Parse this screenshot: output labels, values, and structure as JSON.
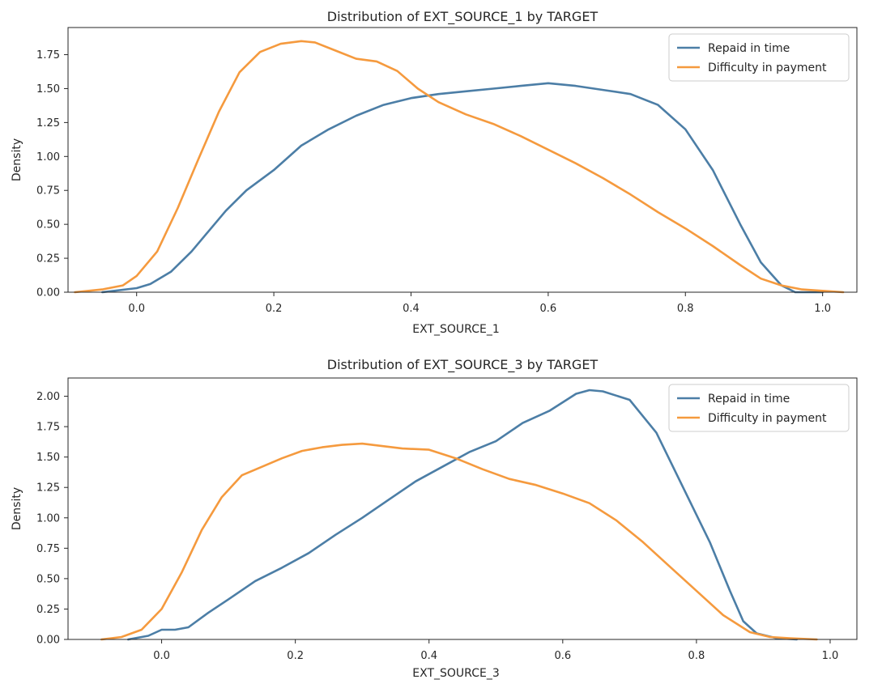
{
  "chart_data": [
    {
      "type": "line",
      "title": "Distribution of EXT_SOURCE_1 by TARGET",
      "xlabel": "EXT_SOURCE_1",
      "ylabel": "Density",
      "xlim": [
        -0.1,
        1.05
      ],
      "ylim": [
        0.0,
        1.95
      ],
      "xticks": [
        "0.0",
        "0.2",
        "0.4",
        "0.6",
        "0.8",
        "1.0"
      ],
      "yticks": [
        "0.00",
        "0.25",
        "0.50",
        "0.75",
        "1.00",
        "1.25",
        "1.50",
        "1.75"
      ],
      "grid": false,
      "legend_position": "top-right",
      "series": [
        {
          "name": "Repaid in time",
          "color": "#4c7ea6",
          "x": [
            -0.05,
            0.0,
            0.02,
            0.05,
            0.08,
            0.1,
            0.13,
            0.16,
            0.2,
            0.24,
            0.28,
            0.32,
            0.36,
            0.4,
            0.44,
            0.48,
            0.52,
            0.56,
            0.6,
            0.64,
            0.68,
            0.72,
            0.76,
            0.8,
            0.84,
            0.88,
            0.91,
            0.94,
            0.96,
            1.0
          ],
          "y": [
            0.0,
            0.03,
            0.06,
            0.15,
            0.3,
            0.42,
            0.6,
            0.75,
            0.9,
            1.08,
            1.2,
            1.3,
            1.38,
            1.43,
            1.46,
            1.48,
            1.5,
            1.52,
            1.54,
            1.52,
            1.49,
            1.46,
            1.38,
            1.2,
            0.9,
            0.5,
            0.22,
            0.05,
            0.0,
            0.0
          ]
        },
        {
          "name": "Difficulty in payment",
          "color": "#f59a3e",
          "x": [
            -0.09,
            -0.05,
            -0.02,
            0.0,
            0.03,
            0.06,
            0.09,
            0.12,
            0.15,
            0.18,
            0.21,
            0.24,
            0.26,
            0.29,
            0.32,
            0.35,
            0.38,
            0.41,
            0.44,
            0.48,
            0.52,
            0.56,
            0.6,
            0.64,
            0.68,
            0.72,
            0.76,
            0.8,
            0.84,
            0.88,
            0.91,
            0.94,
            0.97,
            1.0,
            1.03
          ],
          "y": [
            0.0,
            0.02,
            0.05,
            0.12,
            0.3,
            0.62,
            0.98,
            1.33,
            1.62,
            1.77,
            1.83,
            1.85,
            1.84,
            1.78,
            1.72,
            1.7,
            1.63,
            1.5,
            1.4,
            1.31,
            1.24,
            1.15,
            1.05,
            0.95,
            0.84,
            0.72,
            0.59,
            0.47,
            0.34,
            0.2,
            0.1,
            0.05,
            0.02,
            0.01,
            0.0
          ]
        }
      ]
    },
    {
      "type": "line",
      "title": "Distribution of EXT_SOURCE_3 by TARGET",
      "xlabel": "EXT_SOURCE_3",
      "ylabel": "Density",
      "xlim": [
        -0.14,
        1.04
      ],
      "ylim": [
        0.0,
        2.15
      ],
      "xticks": [
        "0.0",
        "0.2",
        "0.4",
        "0.6",
        "0.8",
        "1.0"
      ],
      "yticks": [
        "0.00",
        "0.25",
        "0.50",
        "0.75",
        "1.00",
        "1.25",
        "1.50",
        "1.75",
        "2.00"
      ],
      "grid": false,
      "legend_position": "top-right",
      "series": [
        {
          "name": "Repaid in time",
          "color": "#4c7ea6",
          "x": [
            -0.05,
            -0.02,
            0.0,
            0.02,
            0.04,
            0.07,
            0.1,
            0.14,
            0.18,
            0.22,
            0.26,
            0.3,
            0.34,
            0.38,
            0.42,
            0.46,
            0.5,
            0.54,
            0.58,
            0.62,
            0.64,
            0.66,
            0.7,
            0.74,
            0.78,
            0.82,
            0.85,
            0.87,
            0.89,
            0.92,
            0.95
          ],
          "y": [
            0.0,
            0.03,
            0.08,
            0.08,
            0.1,
            0.22,
            0.33,
            0.48,
            0.59,
            0.71,
            0.86,
            1.0,
            1.15,
            1.3,
            1.42,
            1.54,
            1.63,
            1.78,
            1.88,
            2.02,
            2.05,
            2.04,
            1.97,
            1.7,
            1.25,
            0.8,
            0.4,
            0.15,
            0.05,
            0.01,
            0.0
          ]
        },
        {
          "name": "Difficulty in payment",
          "color": "#f59a3e",
          "x": [
            -0.09,
            -0.06,
            -0.03,
            0.0,
            0.03,
            0.06,
            0.09,
            0.12,
            0.15,
            0.18,
            0.21,
            0.24,
            0.27,
            0.3,
            0.33,
            0.36,
            0.4,
            0.44,
            0.48,
            0.52,
            0.56,
            0.6,
            0.64,
            0.68,
            0.72,
            0.76,
            0.8,
            0.84,
            0.88,
            0.91,
            0.94,
            0.98
          ],
          "y": [
            0.0,
            0.02,
            0.08,
            0.25,
            0.55,
            0.9,
            1.17,
            1.35,
            1.42,
            1.49,
            1.55,
            1.58,
            1.6,
            1.61,
            1.59,
            1.57,
            1.56,
            1.49,
            1.4,
            1.32,
            1.27,
            1.2,
            1.12,
            0.98,
            0.8,
            0.6,
            0.4,
            0.2,
            0.06,
            0.02,
            0.01,
            0.0
          ]
        }
      ]
    }
  ]
}
